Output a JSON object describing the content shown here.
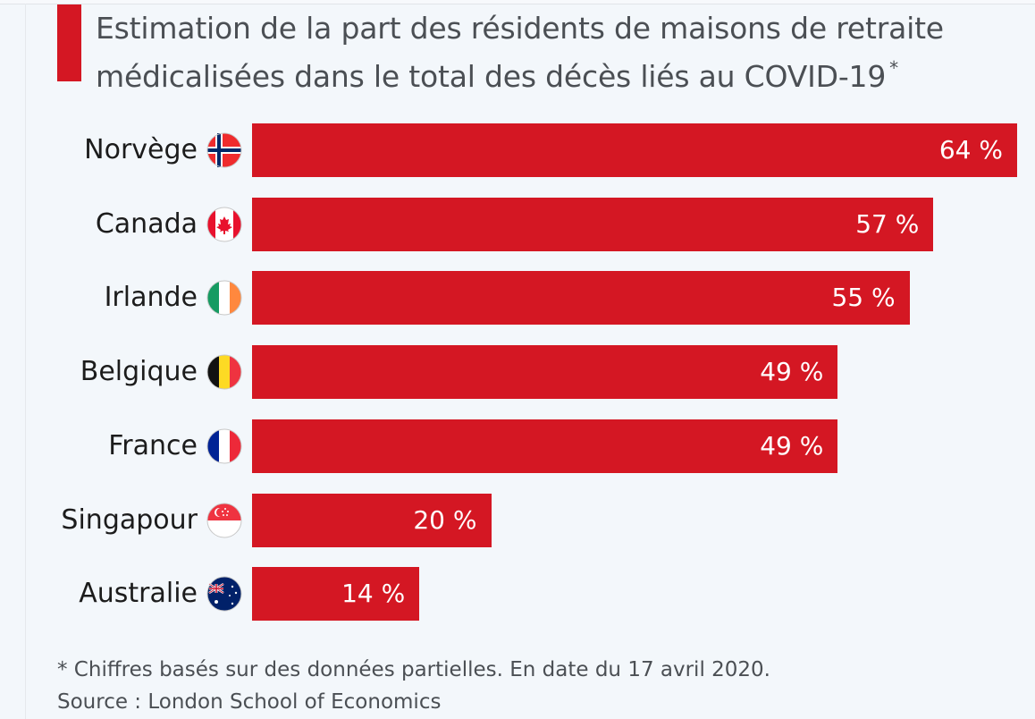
{
  "chart_data": {
    "type": "bar",
    "orientation": "horizontal",
    "title": "Estimation de la part des résidents de maisons de retraite médicalisées dans le total des décès liés au COVID-19",
    "title_marker": "*",
    "categories": [
      "Norvège",
      "Canada",
      "Irlande",
      "Belgique",
      "France",
      "Singapour",
      "Australie"
    ],
    "values": [
      64,
      57,
      55,
      49,
      49,
      20,
      14
    ],
    "value_labels": [
      "64 %",
      "57 %",
      "55 %",
      "49 %",
      "49 %",
      "20 %",
      "14 %"
    ],
    "unit": "%",
    "xlabel": "",
    "ylabel": "",
    "xlim": [
      0,
      64
    ],
    "grid": false,
    "legend": "none",
    "flags": [
      "norway-flag-icon",
      "canada-flag-icon",
      "ireland-flag-icon",
      "belgium-flag-icon",
      "france-flag-icon",
      "singapore-flag-icon",
      "australia-flag-icon"
    ],
    "footnote": "* Chiffres basés sur des données partielles. En date du 17 avril 2020.",
    "source": "Source : London School of Economics"
  },
  "colors": {
    "bar": "#d41723",
    "accent": "#d41723",
    "background": "#f3f7fb",
    "title_text": "#4b4f54",
    "label_text": "#1c1c1c"
  }
}
